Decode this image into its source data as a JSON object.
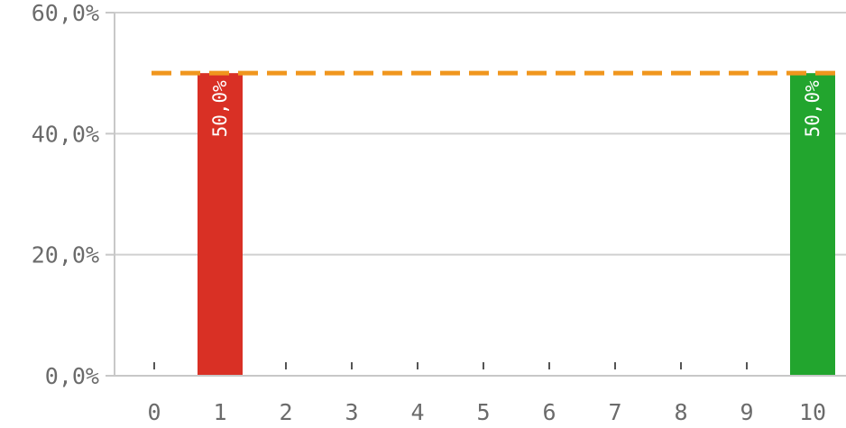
{
  "chart_data": {
    "type": "bar",
    "title": "",
    "xlabel": "",
    "ylabel": "",
    "categories": [
      "0",
      "1",
      "2",
      "3",
      "4",
      "5",
      "6",
      "7",
      "8",
      "9",
      "10"
    ],
    "values": [
      0,
      50,
      0,
      0,
      0,
      0,
      0,
      0,
      0,
      0,
      50
    ],
    "bar_colors": [
      "#d93025",
      "#d93025",
      "#d93025",
      "#d93025",
      "#d93025",
      "#d93025",
      "#d93025",
      "#d93025",
      "#d93025",
      "#d93025",
      "#22a52e"
    ],
    "data_labels": [
      "",
      "50,0%",
      "",
      "",
      "",
      "",
      "",
      "",
      "",
      "",
      "50,0%"
    ],
    "yticks": [
      0,
      20,
      40,
      60
    ],
    "ytick_labels": [
      "0,0%",
      "20,0%",
      "40,0%",
      "60,0%"
    ],
    "ylim": [
      0,
      60
    ],
    "grid": true,
    "reference_line": {
      "value": 50,
      "color": "#f0961e",
      "style": "dashed"
    },
    "axis_color": "#c8c8c8",
    "grid_color": "#d0d0d0"
  }
}
